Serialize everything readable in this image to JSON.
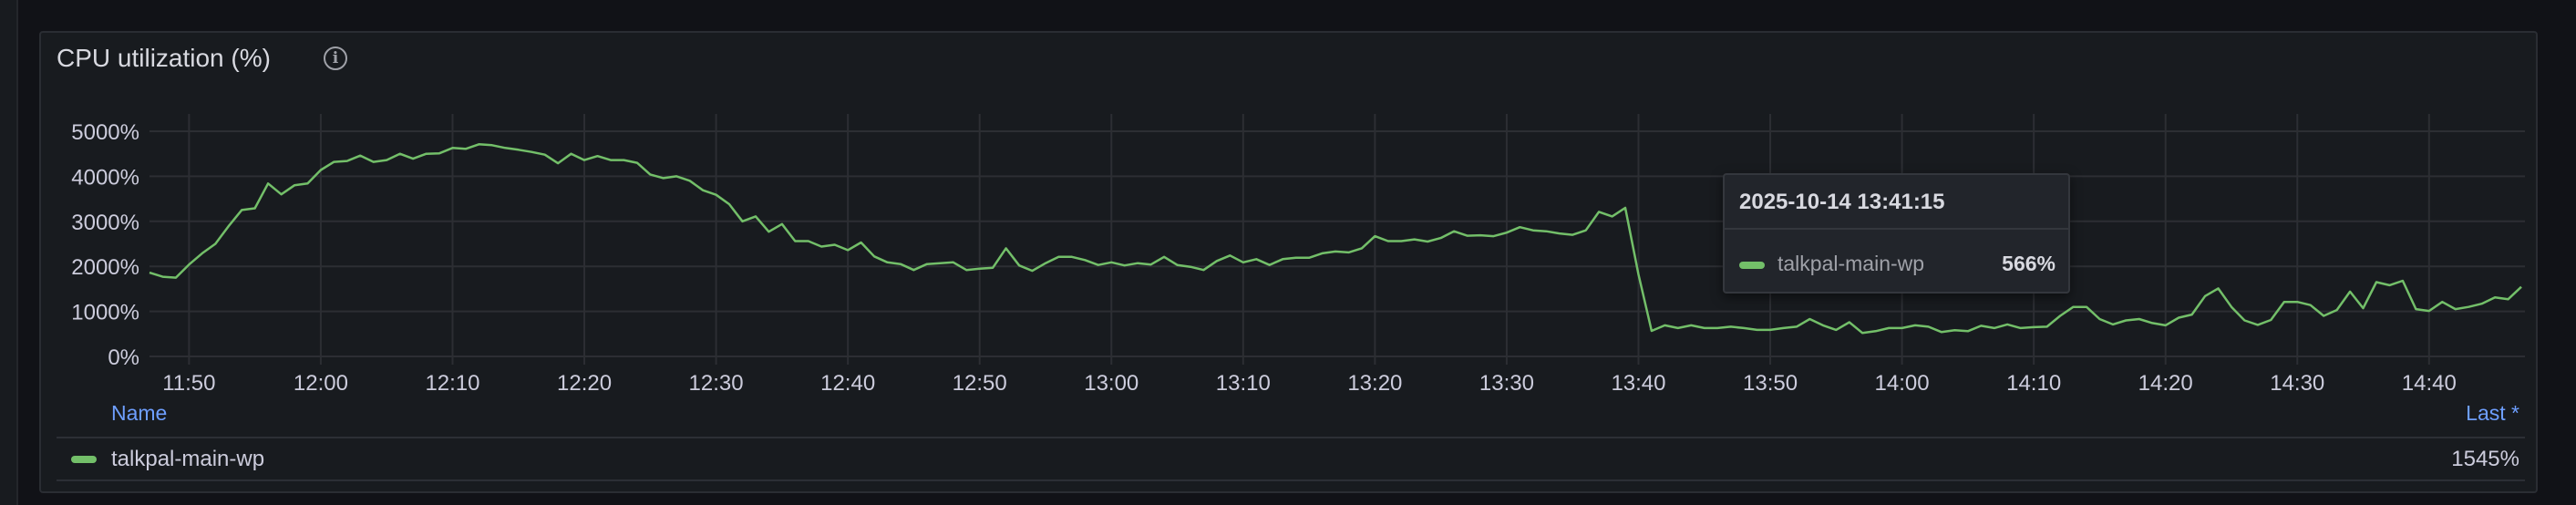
{
  "panel": {
    "title": "CPU utilization (%)",
    "info_icon": "info-circle-icon"
  },
  "legend": {
    "name_header": "Name",
    "last_header": "Last *",
    "series_name": "talkpal-main-wp",
    "series_last": "1545%",
    "header_color": "#6e9fff"
  },
  "tooltip": {
    "time": "2025-10-14 13:41:15",
    "series_name": "talkpal-main-wp",
    "value": "566%"
  },
  "chart_data": {
    "type": "line",
    "title": "CPU utilization (%)",
    "xlabel": "",
    "ylabel": "",
    "ylim": [
      0,
      5000
    ],
    "xlim": [
      "11:47",
      "14:47"
    ],
    "grid": true,
    "legend": "bottom",
    "y_ticks": [
      "0%",
      "1000%",
      "2000%",
      "3000%",
      "4000%",
      "5000%"
    ],
    "y_tick_values": [
      0,
      1000,
      2000,
      3000,
      4000,
      5000
    ],
    "x_ticks": [
      "11:50",
      "12:00",
      "12:10",
      "12:20",
      "12:30",
      "12:40",
      "12:50",
      "13:00",
      "13:10",
      "13:20",
      "13:30",
      "13:40",
      "13:50",
      "14:00",
      "14:10",
      "14:20",
      "14:30",
      "14:40"
    ],
    "series": [
      {
        "name": "talkpal-main-wp",
        "color": "#73bf69",
        "x": [
          "11:47",
          "11:48",
          "11:49",
          "11:50",
          "11:51",
          "11:52",
          "11:53",
          "11:54",
          "11:55",
          "11:56",
          "11:57",
          "11:58",
          "11:59",
          "12:00",
          "12:01",
          "12:02",
          "12:03",
          "12:04",
          "12:05",
          "12:06",
          "12:07",
          "12:08",
          "12:09",
          "12:10",
          "12:11",
          "12:12",
          "12:13",
          "12:14",
          "12:15",
          "12:16",
          "12:17",
          "12:18",
          "12:19",
          "12:20",
          "12:21",
          "12:22",
          "12:23",
          "12:24",
          "12:25",
          "12:26",
          "12:27",
          "12:28",
          "12:29",
          "12:30",
          "12:31",
          "12:32",
          "12:33",
          "12:34",
          "12:35",
          "12:36",
          "12:37",
          "12:38",
          "12:39",
          "12:40",
          "12:41",
          "12:42",
          "12:43",
          "12:44",
          "12:45",
          "12:46",
          "12:47",
          "12:48",
          "12:49",
          "12:50",
          "12:51",
          "12:52",
          "12:53",
          "12:54",
          "12:55",
          "12:56",
          "12:57",
          "12:58",
          "12:59",
          "13:00",
          "13:01",
          "13:02",
          "13:03",
          "13:04",
          "13:05",
          "13:06",
          "13:07",
          "13:08",
          "13:09",
          "13:10",
          "13:11",
          "13:12",
          "13:13",
          "13:14",
          "13:15",
          "13:16",
          "13:17",
          "13:18",
          "13:19",
          "13:20",
          "13:21",
          "13:22",
          "13:23",
          "13:24",
          "13:25",
          "13:26",
          "13:27",
          "13:28",
          "13:29",
          "13:30",
          "13:31",
          "13:32",
          "13:33",
          "13:34",
          "13:35",
          "13:36",
          "13:37",
          "13:38",
          "13:39",
          "13:40",
          "13:41",
          "13:42",
          "13:43",
          "13:44",
          "13:45",
          "13:46",
          "13:47",
          "13:48",
          "13:49",
          "13:50",
          "13:51",
          "13:52",
          "13:53",
          "13:54",
          "13:55",
          "13:56",
          "13:57",
          "13:58",
          "13:59",
          "14:00",
          "14:01",
          "14:02",
          "14:03",
          "14:04",
          "14:05",
          "14:06",
          "14:07",
          "14:08",
          "14:09",
          "14:10",
          "14:11",
          "14:12",
          "14:13",
          "14:14",
          "14:15",
          "14:16",
          "14:17",
          "14:18",
          "14:19",
          "14:20",
          "14:21",
          "14:22",
          "14:23",
          "14:24",
          "14:25",
          "14:26",
          "14:27",
          "14:28",
          "14:29",
          "14:30",
          "14:31",
          "14:32",
          "14:33",
          "14:34",
          "14:35",
          "14:36",
          "14:37",
          "14:38",
          "14:39",
          "14:40",
          "14:41",
          "14:42",
          "14:43",
          "14:44",
          "14:45",
          "14:46",
          "14:47"
        ],
        "values": [
          1860,
          1770,
          1750,
          2040,
          2290,
          2500,
          2890,
          3250,
          3290,
          3840,
          3600,
          3800,
          3840,
          4140,
          4320,
          4340,
          4460,
          4320,
          4360,
          4500,
          4390,
          4500,
          4510,
          4630,
          4610,
          4710,
          4690,
          4630,
          4590,
          4540,
          4480,
          4290,
          4500,
          4360,
          4450,
          4360,
          4360,
          4300,
          4040,
          3960,
          4000,
          3900,
          3690,
          3590,
          3380,
          3000,
          3110,
          2770,
          2940,
          2560,
          2560,
          2440,
          2480,
          2360,
          2530,
          2220,
          2090,
          2050,
          1920,
          2050,
          2070,
          2090,
          1920,
          1950,
          1970,
          2400,
          2020,
          1900,
          2070,
          2210,
          2210,
          2140,
          2030,
          2090,
          2020,
          2070,
          2040,
          2210,
          2030,
          1990,
          1920,
          2120,
          2240,
          2090,
          2160,
          2030,
          2160,
          2190,
          2190,
          2290,
          2330,
          2310,
          2400,
          2670,
          2560,
          2560,
          2600,
          2550,
          2630,
          2780,
          2680,
          2690,
          2670,
          2750,
          2870,
          2800,
          2780,
          2730,
          2700,
          2800,
          3210,
          3110,
          3300,
          1820,
          566,
          690,
          630,
          690,
          630,
          630,
          660,
          630,
          590,
          590,
          630,
          660,
          830,
          690,
          590,
          760,
          520,
          560,
          630,
          630,
          690,
          660,
          540,
          580,
          560,
          680,
          630,
          710,
          630,
          650,
          660,
          900,
          1100,
          1100,
          830,
          710,
          800,
          830,
          740,
          690,
          860,
          930,
          1340,
          1510,
          1100,
          800,
          700,
          810,
          1210,
          1210,
          1140,
          900,
          1030,
          1440,
          1070,
          1650,
          1580,
          1680,
          1050,
          1010,
          1210,
          1050,
          1100,
          1170,
          1310,
          1270,
          1545
        ]
      }
    ]
  }
}
